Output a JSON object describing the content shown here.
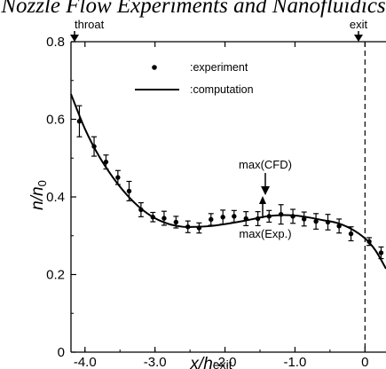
{
  "page": {
    "top_title": "Nozzle Flow Experiments and Nanofluidics"
  },
  "chart_data": {
    "type": "scatter",
    "xlim": [
      -4.2,
      0.3
    ],
    "ylim": [
      0,
      0.8
    ],
    "x_ticks": [
      -4.0,
      -3.0,
      -2.0,
      -1.0,
      0
    ],
    "x_tick_labels": [
      "-4.0",
      "-3.0",
      "-2.0",
      "-1.0",
      "0"
    ],
    "y_ticks": [
      0,
      0.2,
      0.4,
      0.6,
      0.8
    ],
    "y_tick_labels": [
      "0",
      "0.2",
      "0.4",
      "0.6",
      "0.8"
    ],
    "xlabel": {
      "main": "x/h",
      "sub": "exit"
    },
    "ylabel": {
      "main": "n/n",
      "sub": "0"
    },
    "grid": false,
    "legend": {
      "placement": "top-center",
      "entries": [
        ":experiment",
        ":computation"
      ]
    },
    "annotations": {
      "throat": "throat",
      "exit": "exit",
      "max_cfd": "max(CFD)",
      "max_exp": "max(Exp.)"
    },
    "series": [
      {
        "name": "experiment",
        "kind": "scatter-errorbar",
        "points": [
          {
            "x": -4.08,
            "y": 0.595,
            "err": 0.04
          },
          {
            "x": -3.87,
            "y": 0.53,
            "err": 0.025
          },
          {
            "x": -3.7,
            "y": 0.49,
            "err": 0.018
          },
          {
            "x": -3.53,
            "y": 0.45,
            "err": 0.018
          },
          {
            "x": -3.37,
            "y": 0.415,
            "err": 0.025
          },
          {
            "x": -3.2,
            "y": 0.367,
            "err": 0.018
          },
          {
            "x": -3.03,
            "y": 0.348,
            "err": 0.012
          },
          {
            "x": -2.87,
            "y": 0.345,
            "err": 0.018
          },
          {
            "x": -2.7,
            "y": 0.335,
            "err": 0.015
          },
          {
            "x": -2.53,
            "y": 0.323,
            "err": 0.015
          },
          {
            "x": -2.37,
            "y": 0.32,
            "err": 0.013
          },
          {
            "x": -2.2,
            "y": 0.342,
            "err": 0.015
          },
          {
            "x": -2.03,
            "y": 0.348,
            "err": 0.018
          },
          {
            "x": -1.87,
            "y": 0.35,
            "err": 0.015
          },
          {
            "x": -1.7,
            "y": 0.344,
            "err": 0.018
          },
          {
            "x": -1.53,
            "y": 0.344,
            "err": 0.018
          },
          {
            "x": -1.37,
            "y": 0.35,
            "err": 0.015
          },
          {
            "x": -1.2,
            "y": 0.355,
            "err": 0.025
          },
          {
            "x": -1.03,
            "y": 0.35,
            "err": 0.018
          },
          {
            "x": -0.87,
            "y": 0.343,
            "err": 0.018
          },
          {
            "x": -0.7,
            "y": 0.337,
            "err": 0.02
          },
          {
            "x": -0.53,
            "y": 0.335,
            "err": 0.02
          },
          {
            "x": -0.37,
            "y": 0.325,
            "err": 0.018
          },
          {
            "x": -0.2,
            "y": 0.305,
            "err": 0.018
          },
          {
            "x": 0.06,
            "y": 0.285,
            "err": 0.01
          },
          {
            "x": 0.23,
            "y": 0.256,
            "err": 0.015
          }
        ]
      },
      {
        "name": "computation",
        "kind": "line",
        "x": [
          -4.2,
          -4.0,
          -3.8,
          -3.6,
          -3.4,
          -3.2,
          -3.0,
          -2.8,
          -2.6,
          -2.4,
          -2.2,
          -2.0,
          -1.8,
          -1.6,
          -1.4,
          -1.2,
          -1.0,
          -0.8,
          -0.6,
          -0.4,
          -0.2,
          0.0,
          0.15,
          0.3
        ],
        "y": [
          0.665,
          0.575,
          0.505,
          0.45,
          0.405,
          0.37,
          0.345,
          0.33,
          0.323,
          0.323,
          0.325,
          0.33,
          0.336,
          0.343,
          0.35,
          0.353,
          0.352,
          0.347,
          0.34,
          0.333,
          0.318,
          0.293,
          0.262,
          0.215
        ]
      }
    ]
  }
}
